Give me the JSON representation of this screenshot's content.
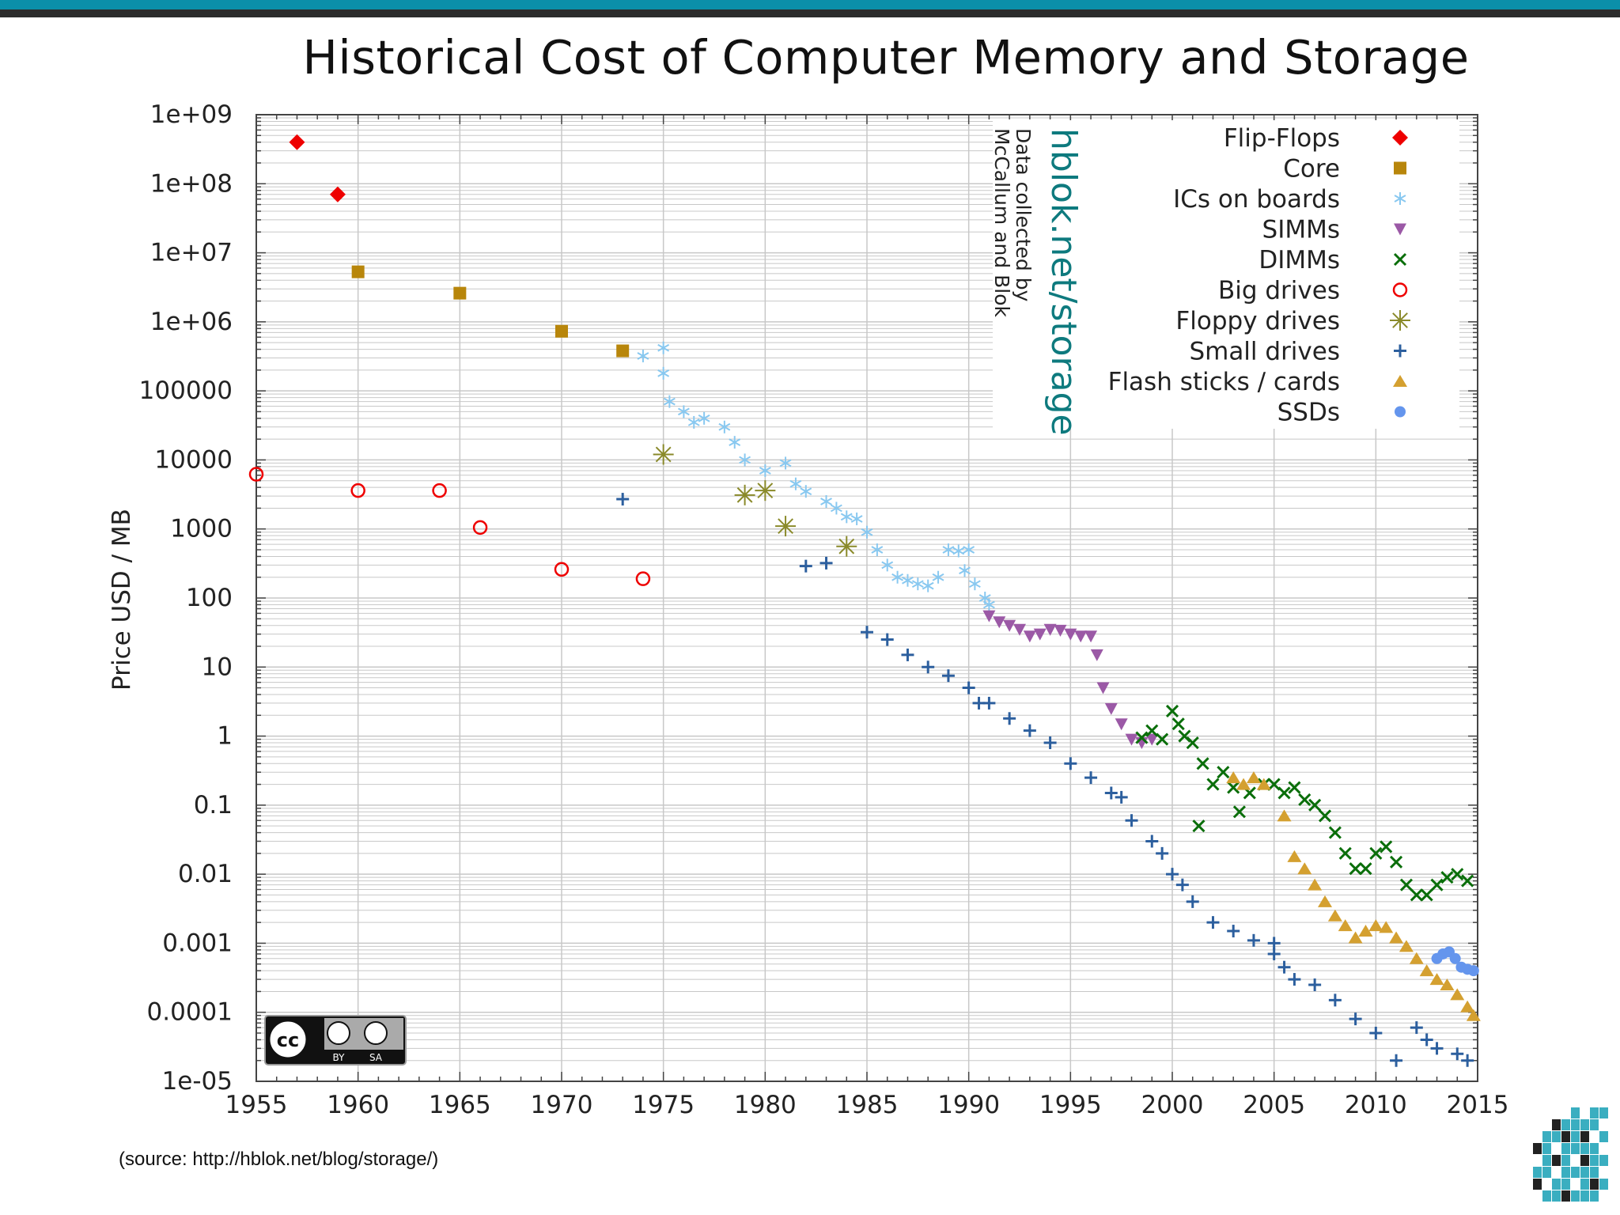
{
  "title": "Historical Cost of Computer Memory and Storage",
  "source_note": "(source: http://hblok.net/blog/storage/)",
  "credit": {
    "site": "hblok.net/storage",
    "line1": "Data collected by",
    "line2": "McCallum and Blok"
  },
  "license_badge": {
    "cc": "cc",
    "by": "BY",
    "sa": "SA"
  },
  "colors": {
    "top_bar": "#0b8fa9",
    "grid": "#c8c8c8",
    "flip_flops": "#ee0000",
    "core": "#b8860b",
    "ics_on_boards": "#88c8f0",
    "simms": "#9b59a6",
    "dimms": "#0a6e0a",
    "big_drives": "#ee0000",
    "floppy_drives": "#8a8a2a",
    "small_drives": "#2c5f9e",
    "flash": "#d4a030",
    "ssds": "#6495ed"
  },
  "chart_data": {
    "type": "scatter",
    "title": "Historical Cost of Computer Memory and Storage",
    "xlabel": "",
    "ylabel": "Price USD / MB",
    "xlim": [
      1955,
      2015
    ],
    "ylim": [
      1e-05,
      1000000000
    ],
    "y_scale": "log",
    "grid": true,
    "legend_position": "top-right",
    "x_ticks": [
      1955,
      1960,
      1965,
      1970,
      1975,
      1980,
      1985,
      1990,
      1995,
      2000,
      2005,
      2010,
      2015
    ],
    "x_tick_labels": [
      "1955",
      "1960",
      "1965",
      "1970",
      "1975",
      "1980",
      "1985",
      "1990",
      "1995",
      "2000",
      "2005",
      "2010",
      "2015"
    ],
    "y_ticks": [
      1000000000,
      100000000,
      10000000,
      1000000,
      100000,
      10000,
      1000,
      100,
      10,
      1,
      0.1,
      0.01,
      0.001,
      0.0001,
      1e-05
    ],
    "y_tick_labels": [
      "1e+09",
      "1e+08",
      "1e+07",
      "1e+06",
      "100000",
      "10000",
      "1000",
      "100",
      "10",
      "1",
      "0.1",
      "0.01",
      "0.001",
      "0.0001",
      "1e-05"
    ],
    "series": [
      {
        "name": "Flip-Flops",
        "marker": "diamond",
        "color": "#ee0000",
        "points": [
          [
            1957,
            400000000
          ],
          [
            1959,
            70000000
          ]
        ]
      },
      {
        "name": "Core",
        "marker": "square",
        "color": "#b8860b",
        "points": [
          [
            1960,
            5300000
          ],
          [
            1965,
            2600000
          ],
          [
            1970,
            730000
          ],
          [
            1973,
            380000
          ]
        ]
      },
      {
        "name": "ICs on boards",
        "marker": "asterisk",
        "color": "#88c8f0",
        "points": [
          [
            1974,
            320000
          ],
          [
            1975,
            420000
          ],
          [
            1975,
            180000
          ],
          [
            1975.3,
            70000
          ],
          [
            1976,
            50000
          ],
          [
            1976.5,
            35000
          ],
          [
            1977,
            40000
          ],
          [
            1978,
            30000
          ],
          [
            1978.5,
            18000
          ],
          [
            1979,
            10000
          ],
          [
            1980,
            7000
          ],
          [
            1981,
            9000
          ],
          [
            1981.5,
            4500
          ],
          [
            1982,
            3500
          ],
          [
            1983,
            2500
          ],
          [
            1983.5,
            2000
          ],
          [
            1984,
            1500
          ],
          [
            1984.5,
            1400
          ],
          [
            1985,
            900
          ],
          [
            1985.5,
            500
          ],
          [
            1986,
            300
          ],
          [
            1986.5,
            200
          ],
          [
            1987,
            180
          ],
          [
            1987.5,
            160
          ],
          [
            1988,
            150
          ],
          [
            1988.5,
            200
          ],
          [
            1989,
            500
          ],
          [
            1989.5,
            480
          ],
          [
            1990,
            500
          ],
          [
            1989.8,
            250
          ],
          [
            1990.3,
            160
          ],
          [
            1990.8,
            100
          ],
          [
            1991,
            80
          ]
        ]
      },
      {
        "name": "SIMMs",
        "marker": "triangle-down",
        "color": "#9b59a6",
        "points": [
          [
            1991,
            55
          ],
          [
            1991.5,
            45
          ],
          [
            1992,
            40
          ],
          [
            1992.5,
            35
          ],
          [
            1993,
            28
          ],
          [
            1993.5,
            30
          ],
          [
            1994,
            35
          ],
          [
            1994.5,
            34
          ],
          [
            1995,
            30
          ],
          [
            1995.5,
            28
          ],
          [
            1996,
            28
          ],
          [
            1996.3,
            15
          ],
          [
            1996.6,
            5
          ],
          [
            1997,
            2.5
          ],
          [
            1997.5,
            1.5
          ],
          [
            1998,
            0.9
          ],
          [
            1998.5,
            0.8
          ],
          [
            1999,
            0.9
          ]
        ]
      },
      {
        "name": "DIMMs",
        "marker": "x",
        "color": "#0a6e0a",
        "points": [
          [
            1998.5,
            0.95
          ],
          [
            1999,
            1.2
          ],
          [
            1999.5,
            0.9
          ],
          [
            2000,
            2.3
          ],
          [
            2000.3,
            1.5
          ],
          [
            2000.6,
            1.0
          ],
          [
            2001,
            0.8
          ],
          [
            2001.3,
            0.05
          ],
          [
            2001.5,
            0.4
          ],
          [
            2002,
            0.2
          ],
          [
            2002.5,
            0.3
          ],
          [
            2003,
            0.18
          ],
          [
            2003.3,
            0.08
          ],
          [
            2003.8,
            0.15
          ],
          [
            2004.5,
            0.2
          ],
          [
            2005,
            0.2
          ],
          [
            2005.5,
            0.15
          ],
          [
            2006,
            0.18
          ],
          [
            2006.5,
            0.12
          ],
          [
            2007,
            0.1
          ],
          [
            2007.5,
            0.07
          ],
          [
            2008,
            0.04
          ],
          [
            2008.5,
            0.02
          ],
          [
            2009,
            0.012
          ],
          [
            2009.5,
            0.012
          ],
          [
            2010,
            0.02
          ],
          [
            2010.5,
            0.025
          ],
          [
            2011,
            0.015
          ],
          [
            2011.5,
            0.007
          ],
          [
            2012,
            0.005
          ],
          [
            2012.5,
            0.005
          ],
          [
            2013,
            0.007
          ],
          [
            2013.5,
            0.009
          ],
          [
            2014,
            0.01
          ],
          [
            2014.5,
            0.008
          ]
        ]
      },
      {
        "name": "Big drives",
        "marker": "circle-open",
        "color": "#ee0000",
        "points": [
          [
            1955,
            6200
          ],
          [
            1960,
            3600
          ],
          [
            1964,
            3600
          ],
          [
            1966,
            1050
          ],
          [
            1970,
            260
          ],
          [
            1974,
            190
          ]
        ]
      },
      {
        "name": "Floppy drives",
        "marker": "star",
        "color": "#8a8a2a",
        "points": [
          [
            1975,
            12000
          ],
          [
            1979,
            3100
          ],
          [
            1980,
            3600
          ],
          [
            1981,
            1100
          ],
          [
            1984,
            560
          ]
        ]
      },
      {
        "name": "Small drives",
        "marker": "plus",
        "color": "#2c5f9e",
        "points": [
          [
            1973,
            2700
          ],
          [
            1982,
            290
          ],
          [
            1983,
            320
          ],
          [
            1985,
            32
          ],
          [
            1986,
            25
          ],
          [
            1987,
            15
          ],
          [
            1988,
            10
          ],
          [
            1989,
            7.5
          ],
          [
            1990,
            5
          ],
          [
            1990.5,
            3
          ],
          [
            1991,
            3
          ],
          [
            1992,
            1.8
          ],
          [
            1993,
            1.2
          ],
          [
            1994,
            0.8
          ],
          [
            1995,
            0.4
          ],
          [
            1996,
            0.25
          ],
          [
            1997,
            0.15
          ],
          [
            1997.5,
            0.13
          ],
          [
            1998,
            0.06
          ],
          [
            1999,
            0.03
          ],
          [
            1999.5,
            0.02
          ],
          [
            2000,
            0.01
          ],
          [
            2000.5,
            0.007
          ],
          [
            2001,
            0.004
          ],
          [
            2002,
            0.002
          ],
          [
            2003,
            0.0015
          ],
          [
            2004,
            0.0011
          ],
          [
            2005,
            0.0007
          ],
          [
            2005,
            0.001
          ],
          [
            2005.5,
            0.00045
          ],
          [
            2006,
            0.0003
          ],
          [
            2007,
            0.00025
          ],
          [
            2008,
            0.00015
          ],
          [
            2009,
            8e-05
          ],
          [
            2010,
            5e-05
          ],
          [
            2011,
            2e-05
          ],
          [
            2012,
            6e-05
          ],
          [
            2012.5,
            4e-05
          ],
          [
            2013,
            3e-05
          ],
          [
            2014,
            2.5e-05
          ],
          [
            2014.5,
            2e-05
          ]
        ]
      },
      {
        "name": "Flash sticks / cards",
        "marker": "triangle-up",
        "color": "#d4a030",
        "points": [
          [
            2003,
            0.25
          ],
          [
            2003.5,
            0.2
          ],
          [
            2004,
            0.25
          ],
          [
            2004.5,
            0.2
          ],
          [
            2005.5,
            0.07
          ],
          [
            2006,
            0.018
          ],
          [
            2006.5,
            0.012
          ],
          [
            2007,
            0.007
          ],
          [
            2007.5,
            0.004
          ],
          [
            2008,
            0.0025
          ],
          [
            2008.5,
            0.0018
          ],
          [
            2009,
            0.0012
          ],
          [
            2009.5,
            0.0015
          ],
          [
            2010,
            0.0018
          ],
          [
            2010.5,
            0.0017
          ],
          [
            2011,
            0.0012
          ],
          [
            2011.5,
            0.0009
          ],
          [
            2012,
            0.0006
          ],
          [
            2012.5,
            0.0004
          ],
          [
            2013,
            0.0003
          ],
          [
            2013.5,
            0.00025
          ],
          [
            2014,
            0.00018
          ],
          [
            2014.5,
            0.00012
          ],
          [
            2014.8,
            9e-05
          ]
        ]
      },
      {
        "name": "SSDs",
        "marker": "hexagon",
        "color": "#6495ed",
        "points": [
          [
            2013,
            0.0006
          ],
          [
            2013.3,
            0.0007
          ],
          [
            2013.6,
            0.00075
          ],
          [
            2013.9,
            0.0006
          ],
          [
            2014.2,
            0.00045
          ],
          [
            2014.5,
            0.00042
          ],
          [
            2014.8,
            0.0004
          ]
        ]
      }
    ]
  }
}
